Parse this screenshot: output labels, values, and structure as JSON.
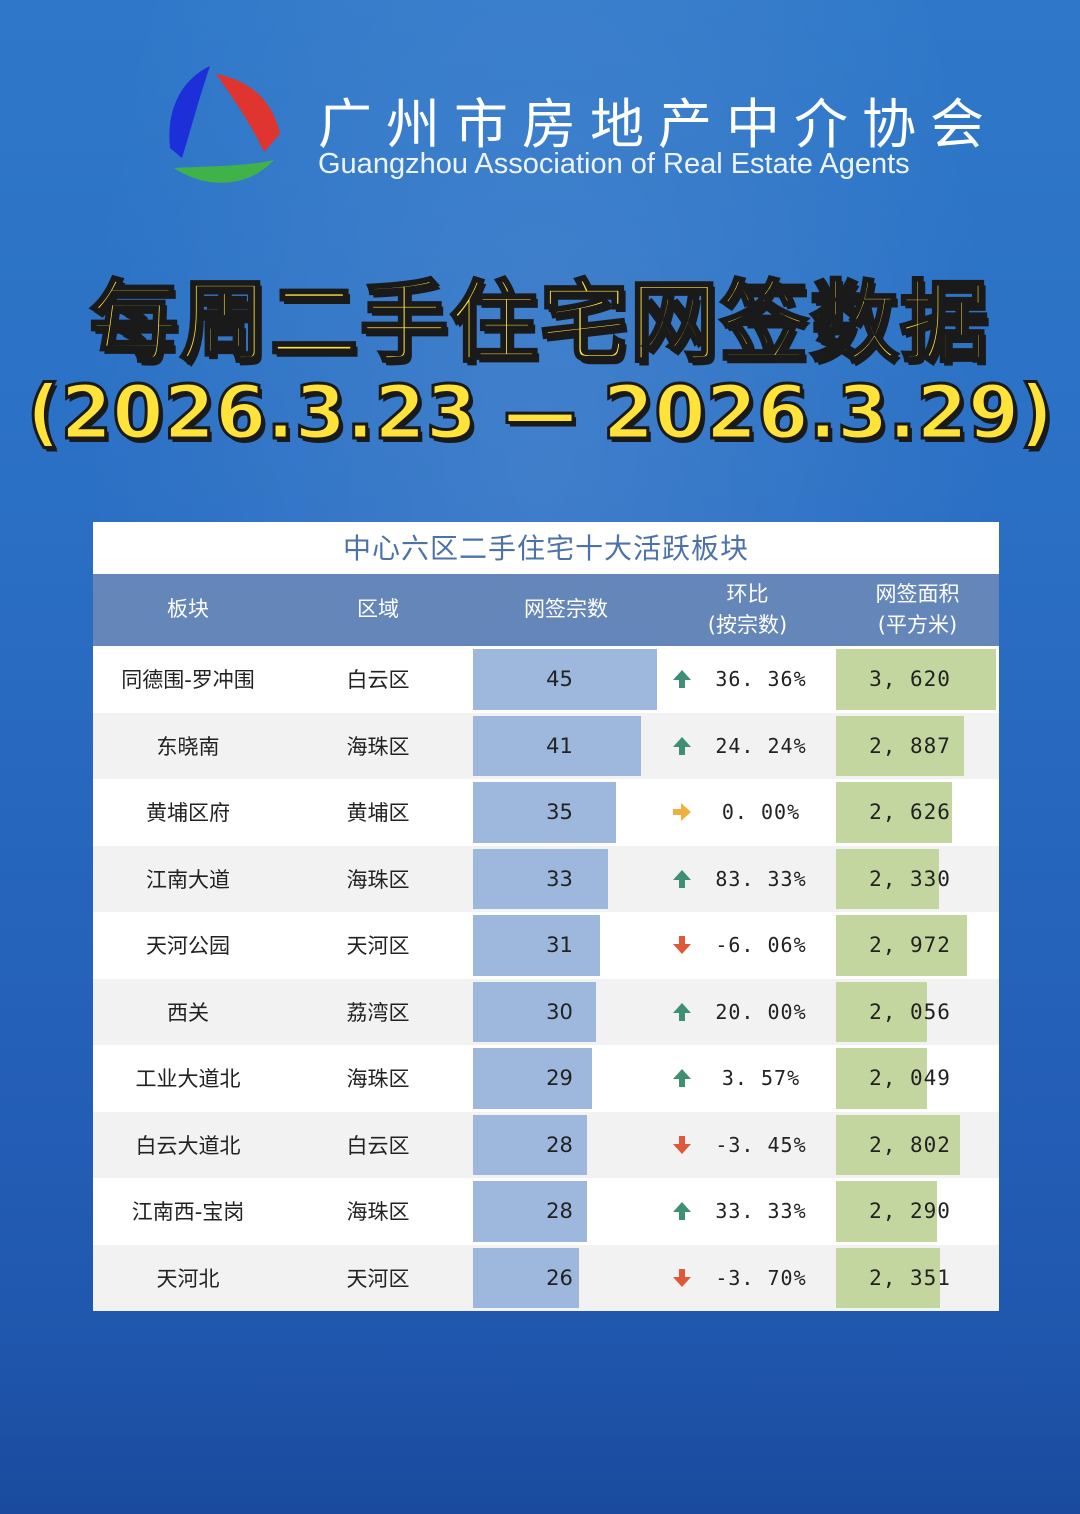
{
  "org": {
    "name_cn": "广州市房地产中介协会",
    "name_en": "Guangzhou Association of Real Estate Agents",
    "logo_icon": "tri-color-triangle-logo"
  },
  "headline": {
    "title": "每周二手住宅网签数据",
    "date_range": "(2026.3.23 — 2026.3.29)"
  },
  "colors": {
    "background": "#2a6fc4",
    "title_yellow": "#ffe23a",
    "header_blue": "#6486b8",
    "count_bar": "#9db8dc",
    "area_bar": "#c4d6a0",
    "up_arrow": "#3f8f72",
    "down_arrow": "#e0583a",
    "flat_arrow": "#f0b040"
  },
  "table": {
    "title": "中心六区二手住宅十大活跃板块",
    "headers": {
      "block": "板块",
      "district": "区域",
      "count": "网签宗数",
      "change_line1": "环比",
      "change_line2": "(按宗数)",
      "area_line1": "网签面积",
      "area_line2": "(平方米)"
    },
    "max_count": 45,
    "max_area": 3620,
    "rows": [
      {
        "block": "同德围-罗冲围",
        "district": "白云区",
        "count": 45,
        "change": "36. 36%",
        "trend": "up",
        "area": "3, 620",
        "area_value": 3620
      },
      {
        "block": "东晓南",
        "district": "海珠区",
        "count": 41,
        "change": "24. 24%",
        "trend": "up",
        "area": "2, 887",
        "area_value": 2887
      },
      {
        "block": "黄埔区府",
        "district": "黄埔区",
        "count": 35,
        "change": "0. 00%",
        "trend": "flat",
        "area": "2, 626",
        "area_value": 2626
      },
      {
        "block": "江南大道",
        "district": "海珠区",
        "count": 33,
        "change": "83. 33%",
        "trend": "up",
        "area": "2, 330",
        "area_value": 2330
      },
      {
        "block": "天河公园",
        "district": "天河区",
        "count": 31,
        "change": "-6. 06%",
        "trend": "down",
        "area": "2, 972",
        "area_value": 2972
      },
      {
        "block": "西关",
        "district": "荔湾区",
        "count": 30,
        "change": "20. 00%",
        "trend": "up",
        "area": "2, 056",
        "area_value": 2056
      },
      {
        "block": "工业大道北",
        "district": "海珠区",
        "count": 29,
        "change": "3. 57%",
        "trend": "up",
        "area": "2, 049",
        "area_value": 2049
      },
      {
        "block": "白云大道北",
        "district": "白云区",
        "count": 28,
        "change": "-3. 45%",
        "trend": "down",
        "area": "2, 802",
        "area_value": 2802
      },
      {
        "block": "江南西-宝岗",
        "district": "海珠区",
        "count": 28,
        "change": "33. 33%",
        "trend": "up",
        "area": "2, 290",
        "area_value": 2290
      },
      {
        "block": "天河北",
        "district": "天河区",
        "count": 26,
        "change": "-3. 70%",
        "trend": "down",
        "area": "2, 351",
        "area_value": 2351
      }
    ]
  }
}
